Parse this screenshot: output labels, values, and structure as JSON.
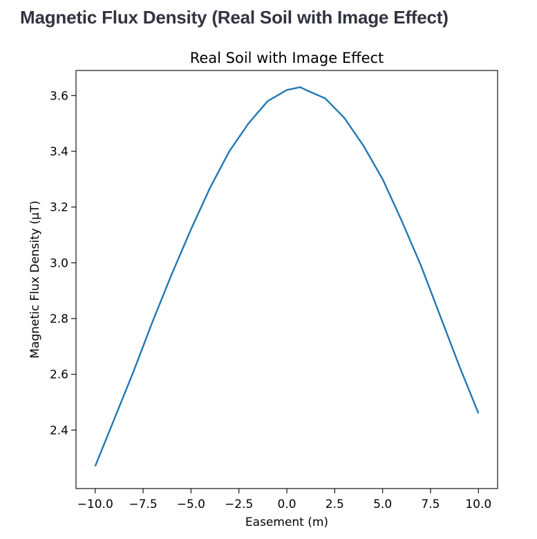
{
  "page": {
    "title": "Magnetic Flux Density (Real Soil with Image Effect)"
  },
  "chart_data": {
    "type": "line",
    "title": "Real Soil with Image Effect",
    "xlabel": "Easement (m)",
    "ylabel": "Magnetic Flux Density (μT)",
    "xlim": [
      -11,
      11
    ],
    "ylim": [
      2.19,
      3.69
    ],
    "xticks": [
      -10.0,
      -7.5,
      -5.0,
      -2.5,
      0.0,
      2.5,
      5.0,
      7.5,
      10.0
    ],
    "xtick_labels": [
      "−10.0",
      "−7.5",
      "−5.0",
      "−2.5",
      "0.0",
      "2.5",
      "5.0",
      "7.5",
      "10.0"
    ],
    "yticks": [
      2.4,
      2.6,
      2.8,
      3.0,
      3.2,
      3.4,
      3.6
    ],
    "ytick_labels": [
      "2.4",
      "2.6",
      "2.8",
      "3.0",
      "3.2",
      "3.4",
      "3.6"
    ],
    "grid": false,
    "line_color": "#1f77b4",
    "series": [
      {
        "x": [
          -10,
          -9,
          -8,
          -7,
          -6,
          -5,
          -4,
          -3,
          -2,
          -1,
          0,
          0.7,
          1,
          2,
          3,
          4,
          5,
          6,
          7,
          8,
          9,
          10
        ],
        "y": [
          2.27,
          2.44,
          2.61,
          2.79,
          2.96,
          3.12,
          3.27,
          3.4,
          3.5,
          3.58,
          3.62,
          3.63,
          3.62,
          3.59,
          3.52,
          3.42,
          3.3,
          3.15,
          2.99,
          2.81,
          2.63,
          2.46
        ]
      }
    ]
  }
}
